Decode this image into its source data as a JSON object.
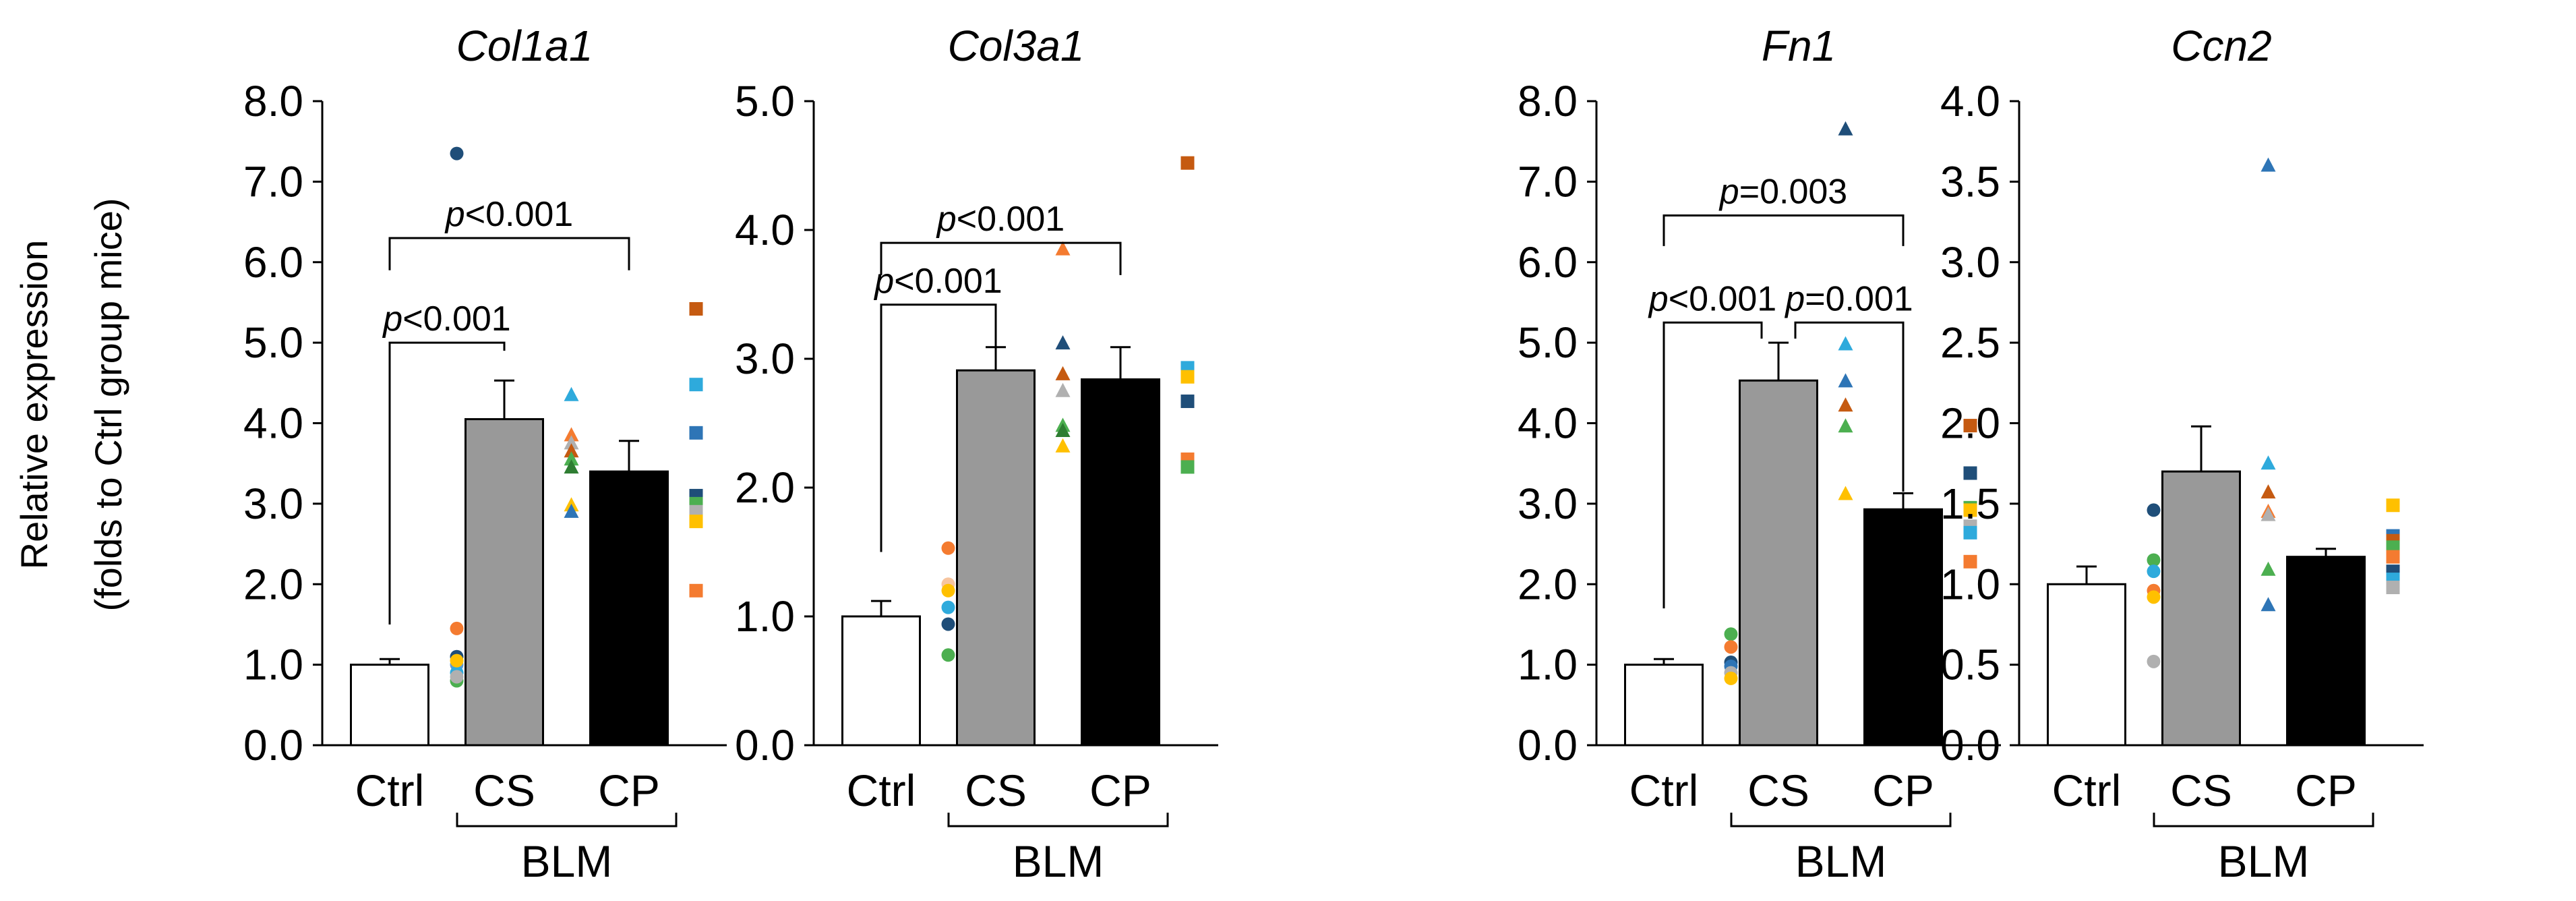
{
  "figure": {
    "ylabel_line1": "Relative expression",
    "ylabel_line2": "(folds to Ctrl group mice)",
    "group_label": "BLM"
  },
  "chart_data": [
    {
      "type": "bar",
      "title": "Col1a1",
      "xlabel": "",
      "ylabel": "Relative expression (folds to Ctrl group mice)",
      "categories": [
        "Ctrl",
        "CS",
        "CP"
      ],
      "values": [
        1.0,
        4.05,
        3.4
      ],
      "errors": [
        0.07,
        0.48,
        0.38
      ],
      "ylim": [
        0,
        8
      ],
      "ytick_step": 1,
      "ytick_decimals": 1,
      "colors": [
        "#ffffff",
        "#999999",
        "#000000"
      ],
      "points": [
        [
          {
            "v": 1.45,
            "c": "#f47b30",
            "s": "circle"
          },
          {
            "v": 1.1,
            "c": "#1f4e79",
            "s": "circle"
          },
          {
            "v": 1.0,
            "c": "#5b9bd5",
            "s": "circle"
          },
          {
            "v": 0.9,
            "c": "#2eaadc",
            "s": "circle"
          },
          {
            "v": 0.8,
            "c": "#4caf50",
            "s": "circle"
          },
          {
            "v": 0.85,
            "c": "#b0b0b0",
            "s": "circle"
          },
          {
            "v": 1.05,
            "c": "#ffc000",
            "s": "circle"
          },
          {
            "v": 7.35,
            "c": "#1f4e79",
            "s": "circle"
          }
        ],
        [
          {
            "v": 4.35,
            "c": "#2eaadc",
            "s": "triangle"
          },
          {
            "v": 3.85,
            "c": "#f47b30",
            "s": "triangle"
          },
          {
            "v": 3.75,
            "c": "#b0b0b0",
            "s": "triangle"
          },
          {
            "v": 3.65,
            "c": "#c55a11",
            "s": "triangle"
          },
          {
            "v": 3.55,
            "c": "#4caf50",
            "s": "triangle"
          },
          {
            "v": 3.45,
            "c": "#2e7d32",
            "s": "triangle"
          },
          {
            "v": 2.98,
            "c": "#ffc000",
            "s": "triangle"
          },
          {
            "v": 2.9,
            "c": "#2e75b6",
            "s": "triangle"
          }
        ],
        [
          {
            "v": 5.42,
            "c": "#c55a11",
            "s": "square"
          },
          {
            "v": 4.48,
            "c": "#2eaadc",
            "s": "square"
          },
          {
            "v": 3.88,
            "c": "#2e75b6",
            "s": "square"
          },
          {
            "v": 3.1,
            "c": "#1f4e79",
            "s": "square"
          },
          {
            "v": 3.0,
            "c": "#4caf50",
            "s": "square"
          },
          {
            "v": 2.9,
            "c": "#b0b0b0",
            "s": "square"
          },
          {
            "v": 2.78,
            "c": "#ffc000",
            "s": "square"
          },
          {
            "v": 1.92,
            "c": "#f47b30",
            "s": "square"
          }
        ]
      ],
      "brackets": [
        {
          "from": 0,
          "to": 1,
          "y_left": 1.5,
          "y_right": 4.9,
          "top": 5.0,
          "label_p": "p",
          "label_rest": "<0.001"
        },
        {
          "from": 0,
          "to": 2,
          "y_left": 5.9,
          "y_right": 5.9,
          "top": 6.3,
          "label_p": "p",
          "label_rest": "<0.001"
        }
      ]
    },
    {
      "type": "bar",
      "title": "Col3a1",
      "xlabel": "",
      "ylabel": "",
      "categories": [
        "Ctrl",
        "CS",
        "CP"
      ],
      "values": [
        1.0,
        2.91,
        2.84
      ],
      "errors": [
        0.12,
        0.18,
        0.25
      ],
      "ylim": [
        0,
        5
      ],
      "ytick_step": 1,
      "ytick_decimals": 1,
      "colors": [
        "#ffffff",
        "#999999",
        "#000000"
      ],
      "points": [
        [
          {
            "v": 1.53,
            "c": "#f47b30",
            "s": "circle"
          },
          {
            "v": 1.25,
            "c": "#f7c59f",
            "s": "circle"
          },
          {
            "v": 1.2,
            "c": "#ffc000",
            "s": "circle"
          },
          {
            "v": 1.07,
            "c": "#2eaadc",
            "s": "circle"
          },
          {
            "v": 0.94,
            "c": "#1f4e79",
            "s": "circle"
          },
          {
            "v": 0.7,
            "c": "#4caf50",
            "s": "circle"
          }
        ],
        [
          {
            "v": 3.85,
            "c": "#f47b30",
            "s": "triangle"
          },
          {
            "v": 3.12,
            "c": "#1f4e79",
            "s": "triangle"
          },
          {
            "v": 2.88,
            "c": "#c55a11",
            "s": "triangle"
          },
          {
            "v": 2.75,
            "c": "#b0b0b0",
            "s": "triangle"
          },
          {
            "v": 2.48,
            "c": "#4caf50",
            "s": "triangle"
          },
          {
            "v": 2.44,
            "c": "#2e7d32",
            "s": "triangle"
          },
          {
            "v": 2.32,
            "c": "#ffc000",
            "s": "triangle"
          }
        ],
        [
          {
            "v": 4.52,
            "c": "#c55a11",
            "s": "square"
          },
          {
            "v": 2.93,
            "c": "#2eaadc",
            "s": "square"
          },
          {
            "v": 2.86,
            "c": "#ffc000",
            "s": "square"
          },
          {
            "v": 2.67,
            "c": "#1f4e79",
            "s": "square"
          },
          {
            "v": 2.22,
            "c": "#f47b30",
            "s": "square"
          },
          {
            "v": 2.16,
            "c": "#4caf50",
            "s": "square"
          }
        ]
      ],
      "brackets": [
        {
          "from": 0,
          "to": 1,
          "y_left": 1.5,
          "y_right": 3.05,
          "top": 3.42,
          "label_p": "p",
          "label_rest": "<0.001"
        },
        {
          "from": 0,
          "to": 2,
          "y_left": 3.65,
          "y_right": 3.65,
          "top": 3.9,
          "label_p": "p",
          "label_rest": "<0.001"
        }
      ]
    },
    {
      "type": "bar",
      "title": "Fn1",
      "xlabel": "",
      "ylabel": "",
      "categories": [
        "Ctrl",
        "CS",
        "CP"
      ],
      "values": [
        1.0,
        4.53,
        2.93
      ],
      "errors": [
        0.07,
        0.47,
        0.2
      ],
      "ylim": [
        0,
        8
      ],
      "ytick_step": 1,
      "ytick_decimals": 1,
      "colors": [
        "#ffffff",
        "#999999",
        "#000000"
      ],
      "points": [
        [
          {
            "v": 1.38,
            "c": "#4caf50",
            "s": "circle"
          },
          {
            "v": 1.22,
            "c": "#f47b30",
            "s": "circle"
          },
          {
            "v": 1.03,
            "c": "#1f4e79",
            "s": "circle"
          },
          {
            "v": 0.98,
            "c": "#2e75b6",
            "s": "circle"
          },
          {
            "v": 0.9,
            "c": "#b0b0b0",
            "s": "circle"
          },
          {
            "v": 0.83,
            "c": "#ffc000",
            "s": "circle"
          }
        ],
        [
          {
            "v": 7.65,
            "c": "#1f4e79",
            "s": "triangle"
          },
          {
            "v": 4.98,
            "c": "#2eaadc",
            "s": "triangle"
          },
          {
            "v": 4.52,
            "c": "#2e75b6",
            "s": "triangle"
          },
          {
            "v": 4.22,
            "c": "#c55a11",
            "s": "triangle"
          },
          {
            "v": 3.96,
            "c": "#4caf50",
            "s": "triangle"
          },
          {
            "v": 3.12,
            "c": "#ffc000",
            "s": "triangle"
          }
        ],
        [
          {
            "v": 3.97,
            "c": "#c55a11",
            "s": "square"
          },
          {
            "v": 3.38,
            "c": "#1f4e79",
            "s": "square"
          },
          {
            "v": 2.95,
            "c": "#4caf50",
            "s": "square"
          },
          {
            "v": 2.92,
            "c": "#ffc000",
            "s": "square"
          },
          {
            "v": 2.72,
            "c": "#b0b0b0",
            "s": "square"
          },
          {
            "v": 2.64,
            "c": "#2eaadc",
            "s": "square"
          },
          {
            "v": 2.28,
            "c": "#f47b30",
            "s": "square"
          }
        ]
      ],
      "brackets": [
        {
          "from": 0,
          "to": 1,
          "y_left": 1.7,
          "y_right": 5.05,
          "top": 5.25,
          "label_p": "p",
          "label_rest": "<0.001"
        },
        {
          "from": 1,
          "to": 2,
          "y_left": 5.05,
          "y_right": 3.15,
          "top": 5.25,
          "label_p": "p",
          "label_rest": "=0.001"
        },
        {
          "from": 0,
          "to": 2,
          "y_left": 6.2,
          "y_right": 6.2,
          "top": 6.58,
          "label_p": "p",
          "label_rest": "=0.003"
        }
      ]
    },
    {
      "type": "bar",
      "title": "Ccn2",
      "xlabel": "",
      "ylabel": "",
      "categories": [
        "Ctrl",
        "CS",
        "CP"
      ],
      "values": [
        1.0,
        1.7,
        1.17
      ],
      "errors": [
        0.11,
        0.28,
        0.05
      ],
      "ylim": [
        0,
        4
      ],
      "ytick_step": 0.5,
      "ytick_decimals": 1,
      "colors": [
        "#ffffff",
        "#999999",
        "#000000"
      ],
      "points": [
        [
          {
            "v": 1.46,
            "c": "#1f4e79",
            "s": "circle"
          },
          {
            "v": 1.15,
            "c": "#4caf50",
            "s": "circle"
          },
          {
            "v": 1.08,
            "c": "#2eaadc",
            "s": "circle"
          },
          {
            "v": 0.96,
            "c": "#f47b30",
            "s": "circle"
          },
          {
            "v": 0.92,
            "c": "#ffc000",
            "s": "circle"
          },
          {
            "v": 0.52,
            "c": "#b0b0b0",
            "s": "circle"
          }
        ],
        [
          {
            "v": 3.6,
            "c": "#2e75b6",
            "s": "triangle"
          },
          {
            "v": 1.75,
            "c": "#2eaadc",
            "s": "triangle"
          },
          {
            "v": 1.57,
            "c": "#c55a11",
            "s": "triangle"
          },
          {
            "v": 1.45,
            "c": "#f47b30",
            "s": "triangle"
          },
          {
            "v": 1.43,
            "c": "#b0b0b0",
            "s": "triangle"
          },
          {
            "v": 1.09,
            "c": "#4caf50",
            "s": "triangle"
          },
          {
            "v": 0.87,
            "c": "#2e75b6",
            "s": "triangle"
          }
        ],
        [
          {
            "v": 1.49,
            "c": "#ffc000",
            "s": "square"
          },
          {
            "v": 1.3,
            "c": "#2e75b6",
            "s": "square"
          },
          {
            "v": 1.27,
            "c": "#c55a11",
            "s": "square"
          },
          {
            "v": 1.23,
            "c": "#4caf50",
            "s": "square"
          },
          {
            "v": 1.17,
            "c": "#f47b30",
            "s": "square"
          },
          {
            "v": 1.08,
            "c": "#1f4e79",
            "s": "square"
          },
          {
            "v": 1.03,
            "c": "#2eaadc",
            "s": "square"
          },
          {
            "v": 0.98,
            "c": "#b0b0b0",
            "s": "square"
          }
        ]
      ],
      "brackets": []
    }
  ]
}
